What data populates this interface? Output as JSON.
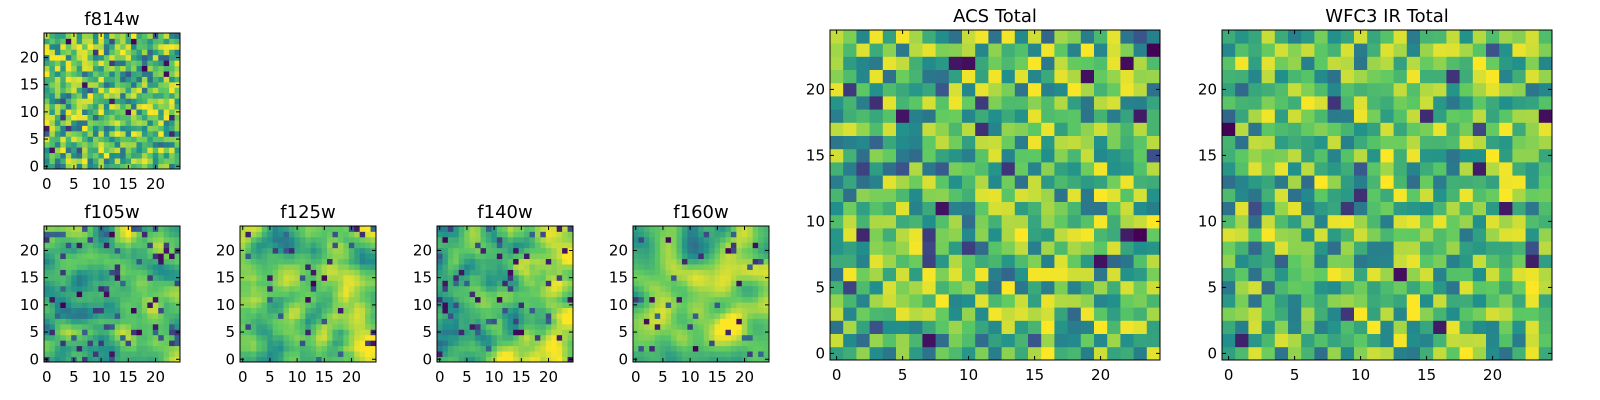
{
  "colormap": [
    "#440154",
    "#3b528b",
    "#21908c",
    "#5dc963",
    "#fde725"
  ],
  "chart_data": [
    {
      "id": "f814w",
      "type": "heatmap",
      "title": "f814w",
      "xticks": [
        "0",
        "5",
        "10",
        "15",
        "20"
      ],
      "yticks": [
        "0",
        "5",
        "10",
        "15",
        "20"
      ],
      "xlim": [
        0,
        25
      ],
      "ylim": [
        0,
        25
      ],
      "grid_size": 25,
      "texture": {
        "seed": 11,
        "smooth": 0,
        "gradient": 0.0,
        "low_frac": 0.05
      }
    },
    {
      "id": "f105w",
      "type": "heatmap",
      "title": "f105w",
      "xticks": [
        "0",
        "5",
        "10",
        "15",
        "20"
      ],
      "yticks": [
        "0",
        "5",
        "10",
        "15",
        "20"
      ],
      "xlim": [
        0,
        25
      ],
      "ylim": [
        0,
        25
      ],
      "grid_size": 25,
      "texture": {
        "seed": 23,
        "smooth": 2,
        "gradient": 0.25,
        "low_frac": 0.12
      }
    },
    {
      "id": "f125w",
      "type": "heatmap",
      "title": "f125w",
      "xticks": [
        "0",
        "5",
        "10",
        "15",
        "20"
      ],
      "yticks": [
        "0",
        "5",
        "10",
        "15",
        "20"
      ],
      "xlim": [
        0,
        25
      ],
      "ylim": [
        0,
        25
      ],
      "grid_size": 25,
      "texture": {
        "seed": 37,
        "smooth": 2,
        "gradient": 0.35,
        "low_frac": 0.06
      }
    },
    {
      "id": "f140w",
      "type": "heatmap",
      "title": "f140w",
      "xticks": [
        "0",
        "5",
        "10",
        "15",
        "20"
      ],
      "yticks": [
        "0",
        "5",
        "10",
        "15",
        "20"
      ],
      "xlim": [
        0,
        25
      ],
      "ylim": [
        0,
        25
      ],
      "grid_size": 25,
      "texture": {
        "seed": 41,
        "smooth": 2,
        "gradient": 0.4,
        "low_frac": 0.1
      }
    },
    {
      "id": "f160w",
      "type": "heatmap",
      "title": "f160w",
      "xticks": [
        "0",
        "5",
        "10",
        "15",
        "20"
      ],
      "yticks": [
        "0",
        "5",
        "10",
        "15",
        "20"
      ],
      "xlim": [
        0,
        25
      ],
      "ylim": [
        0,
        25
      ],
      "grid_size": 25,
      "texture": {
        "seed": 53,
        "smooth": 3,
        "gradient": 0.55,
        "low_frac": 0.08
      }
    },
    {
      "id": "acs-total",
      "type": "heatmap",
      "title": "ACS Total",
      "xticks": [
        "0",
        "5",
        "10",
        "15",
        "20"
      ],
      "yticks": [
        "0",
        "5",
        "10",
        "15",
        "20"
      ],
      "xlim": [
        0,
        25
      ],
      "ylim": [
        0,
        25
      ],
      "grid_size": 25,
      "texture": {
        "seed": 67,
        "smooth": 0,
        "gradient": 0.05,
        "low_frac": 0.04
      }
    },
    {
      "id": "wfc3-ir-total",
      "type": "heatmap",
      "title": "WFC3 IR Total",
      "xticks": [
        "0",
        "5",
        "10",
        "15",
        "20"
      ],
      "yticks": [
        "0",
        "5",
        "10",
        "15",
        "20"
      ],
      "xlim": [
        0,
        25
      ],
      "ylim": [
        0,
        25
      ],
      "grid_size": 25,
      "texture": {
        "seed": 79,
        "smooth": 0,
        "gradient": 0.05,
        "low_frac": 0.05
      }
    }
  ]
}
